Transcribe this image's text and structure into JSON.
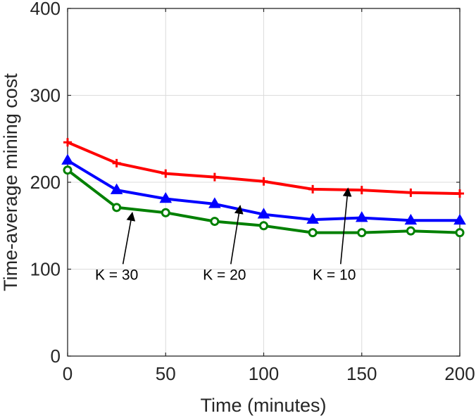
{
  "chart_data": {
    "type": "line",
    "xlabel": "Time (minutes)",
    "ylabel": "Time-average mining cost",
    "xlim": [
      0,
      200
    ],
    "ylim": [
      0,
      400
    ],
    "xticks": [
      0,
      50,
      100,
      150,
      200
    ],
    "yticks": [
      0,
      100,
      200,
      300,
      400
    ],
    "grid": true,
    "x": [
      0,
      25,
      50,
      75,
      100,
      125,
      150,
      175,
      200
    ],
    "series": [
      {
        "name": "K = 10",
        "color": "#ff0000",
        "marker": "plus",
        "values": [
          246,
          222,
          210,
          206,
          201,
          192,
          191,
          188,
          187
        ]
      },
      {
        "name": "K = 20",
        "color": "#0000ff",
        "marker": "triangle",
        "values": [
          225,
          191,
          181,
          175,
          163,
          157,
          159,
          156,
          156
        ]
      },
      {
        "name": "K = 30",
        "color": "#008000",
        "marker": "circle",
        "values": [
          214,
          171,
          165,
          155,
          150,
          142,
          142,
          144,
          142
        ]
      }
    ],
    "annotations": [
      {
        "text": "K = 30",
        "text_at": [
          25,
          88
        ],
        "arrow_to": [
          33,
          165
        ]
      },
      {
        "text": "K = 20",
        "text_at": [
          80,
          88
        ],
        "arrow_to": [
          88,
          173
        ]
      },
      {
        "text": "K = 10",
        "text_at": [
          136,
          88
        ],
        "arrow_to": [
          143,
          193
        ]
      }
    ]
  }
}
